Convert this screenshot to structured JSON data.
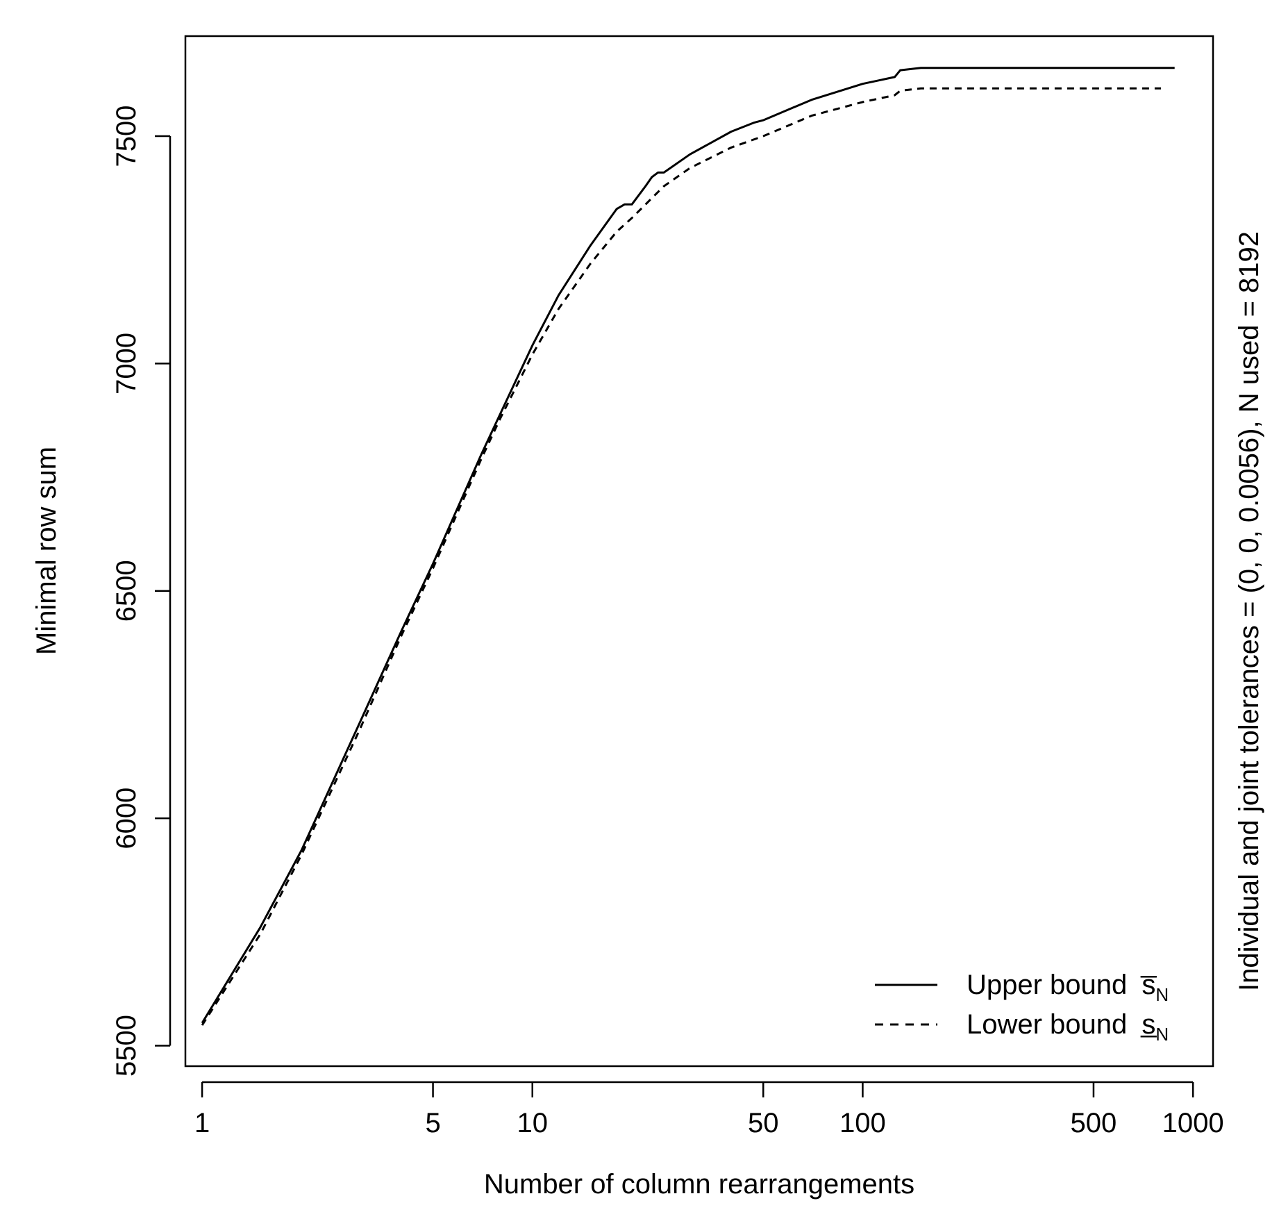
{
  "chart_data": {
    "type": "line",
    "xlabel": "Number of column rearrangements",
    "ylabel": "Minimal row sum",
    "right_label": "Individual and joint tolerances = (0, 0, 0.0056), N used = 8192",
    "xscale": "log",
    "xlim": [
      0.89,
      1150
    ],
    "ylim": [
      5455,
      7720
    ],
    "xticks": [
      1,
      5,
      10,
      50,
      100,
      500,
      1000
    ],
    "xtick_labels": [
      "1",
      "5",
      "10",
      "50",
      "100",
      "500",
      "1000"
    ],
    "yticks": [
      5500,
      6000,
      6500,
      7000,
      7500
    ],
    "ytick_labels": [
      "5500",
      "6000",
      "6500",
      "7000",
      "7500"
    ],
    "grid": false,
    "legend_position": "bottom-right",
    "series": [
      {
        "name": "Upper bound",
        "subscript": "N",
        "symbol": "s̅",
        "line_style": "solid",
        "x": [
          1,
          1.5,
          2,
          3,
          4,
          5,
          6,
          7,
          8,
          10,
          12,
          15,
          18,
          19,
          20,
          22,
          23,
          24,
          25,
          30,
          40,
          47,
          50,
          70,
          100,
          125,
          130,
          150,
          200,
          300,
          500,
          880
        ],
        "y": [
          5550,
          5760,
          5930,
          6210,
          6410,
          6560,
          6690,
          6800,
          6890,
          7040,
          7150,
          7260,
          7340,
          7350,
          7350,
          7390,
          7410,
          7420,
          7420,
          7460,
          7510,
          7530,
          7535,
          7580,
          7615,
          7630,
          7645,
          7650,
          7650,
          7650,
          7650,
          7650
        ]
      },
      {
        "name": "Lower bound",
        "subscript": "N",
        "symbol": "s̲",
        "line_style": "dashed",
        "x": [
          1,
          1.5,
          2,
          3,
          4,
          5,
          6,
          7,
          8,
          10,
          12,
          15,
          18,
          20,
          25,
          30,
          40,
          50,
          70,
          100,
          125,
          130,
          150,
          200,
          300,
          500,
          800
        ],
        "y": [
          5545,
          5745,
          5920,
          6195,
          6400,
          6550,
          6680,
          6790,
          6880,
          7020,
          7120,
          7220,
          7290,
          7320,
          7390,
          7430,
          7475,
          7500,
          7545,
          7575,
          7590,
          7600,
          7605,
          7605,
          7605,
          7605,
          7605
        ]
      }
    ]
  }
}
